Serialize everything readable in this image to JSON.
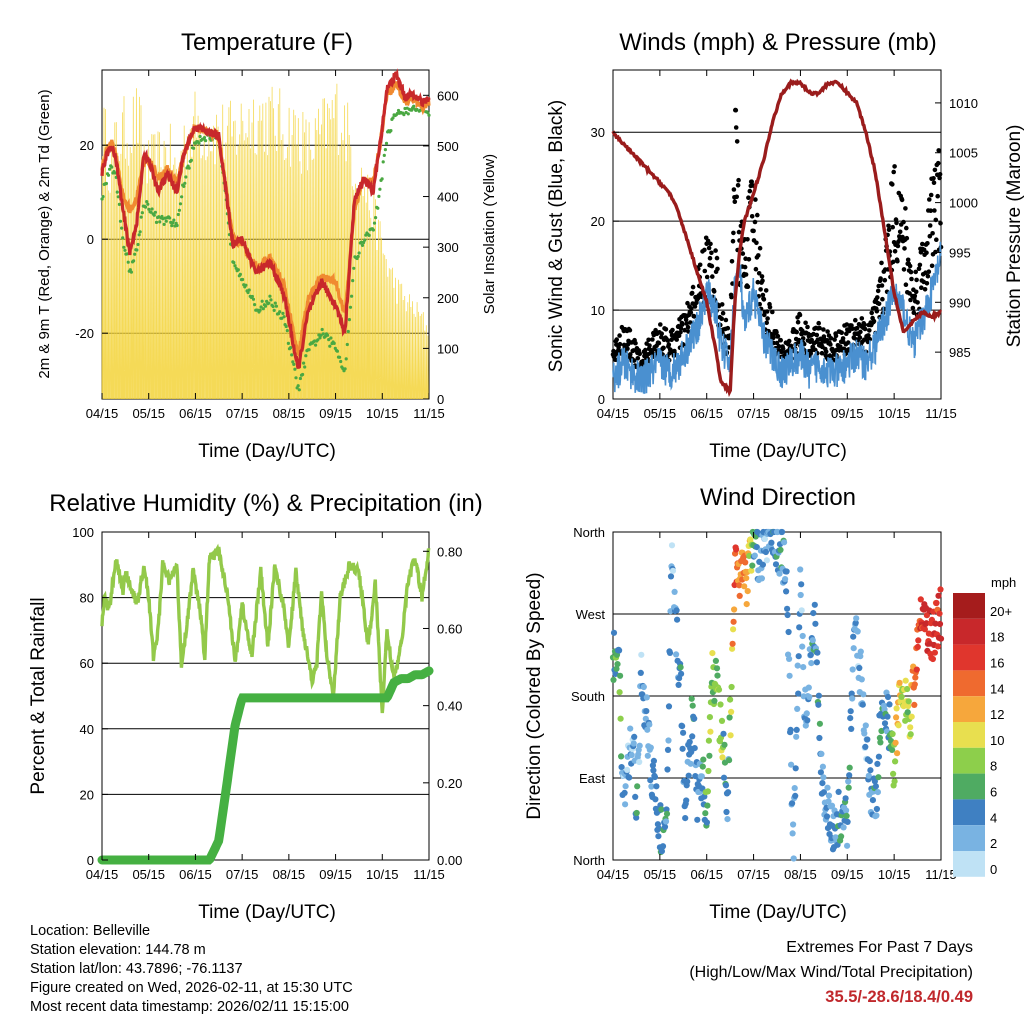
{
  "panels": {
    "temperature": {
      "title": "Temperature (F)",
      "ylabel_left": "2m & 9m T (Red, Orange) & 2m Td (Green)",
      "ylabel_right": "Solar Insolation (Yellow)",
      "xlabel": "Time (Day/UTC)"
    },
    "winds": {
      "title": "Winds (mph) & Pressure (mb)",
      "ylabel_left": "Sonic Wind & Gust (Blue, Black)",
      "ylabel_right": "Station Pressure (Maroon)",
      "xlabel": "Time (Day/UTC)"
    },
    "humidity": {
      "title": "Relative Humidity (%) & Precipitation (in)",
      "ylabel_left": "Percent & Total Rainfall",
      "xlabel": "Time (Day/UTC)"
    },
    "direction": {
      "title": "Wind Direction",
      "ylabel_left": "Direction (Colored By Speed)",
      "xlabel": "Time (Day/UTC)",
      "legend_title": "mph",
      "legend_labels": [
        "20+",
        "18",
        "16",
        "14",
        "12",
        "10",
        "8",
        "6",
        "4",
        "2",
        "0"
      ],
      "legend_colors": [
        "#a51c1c",
        "#c8282b",
        "#e0362d",
        "#ef6a2f",
        "#f6a73c",
        "#e8df4f",
        "#8dcf4b",
        "#4fab62",
        "#3f80c2",
        "#79b3e2",
        "#bfe2f5"
      ]
    }
  },
  "info": {
    "location": "Location: Belleville",
    "elevation": "Station elevation: 144.78 m",
    "latlon": "Station lat/lon: 43.7896; -76.1137",
    "created": "Figure created on Wed, 2026-02-11, at 15:30 UTC",
    "recent": "Most recent data timestamp: 2026/02/11 15:15:00",
    "extremes_title": "Extremes For Past 7 Days",
    "extremes_subtitle": "(High/Low/Max Wind/Total Precipitation)",
    "extremes_values": "35.5/-28.6/18.4/0.49"
  },
  "colors": {
    "temp_2m": "#c8282b",
    "temp_9m": "#f08a30",
    "dewpoint": "#4aa842",
    "solar": "#f3d33a",
    "wind": "#4a90d0",
    "gust": "#000000",
    "pressure": "#9a1c1c",
    "rh": "#93c94a",
    "precip": "#45b042",
    "extremes": "#c0282c"
  },
  "chart_data": [
    {
      "id": "temperature",
      "type": "line",
      "title": "Temperature (F)",
      "xlabel": "Time (Day/UTC)",
      "ylabel": "2m & 9m T (Red, Orange) & 2m Td (Green)",
      "ylabel_right": "Solar Insolation (Yellow)",
      "x_ticks": [
        "04/15",
        "05/15",
        "06/15",
        "07/15",
        "08/15",
        "09/15",
        "10/15",
        "11/15"
      ],
      "ylim": [
        -34,
        36
      ],
      "y_ticks": [
        -20,
        0,
        20
      ],
      "y_ticks_right": [
        0,
        100,
        200,
        300,
        400,
        500,
        600
      ],
      "ylim_right": [
        0,
        650
      ],
      "gridlines_y": [
        -20,
        0,
        20
      ],
      "x": [
        0,
        0.1,
        0.2,
        0.3,
        0.45,
        0.6,
        0.75,
        0.9,
        1.0,
        1.2,
        1.4,
        1.6,
        1.75,
        1.9,
        2.0,
        2.2,
        2.5,
        2.8,
        3.0,
        3.3,
        3.6,
        3.9,
        4.2,
        4.4,
        4.7,
        5.0,
        5.2,
        5.4,
        5.6,
        5.8,
        5.95,
        6.1,
        6.3,
        6.5,
        6.7,
        6.85,
        7.0
      ],
      "series": [
        {
          "name": "2m T (Red)",
          "values": [
            14,
            18,
            20,
            17,
            6,
            -3,
            4,
            18,
            17,
            10,
            14,
            10,
            18,
            22,
            24,
            23,
            22,
            -1,
            0,
            -7,
            -5,
            -12,
            -28,
            -16,
            -9,
            -14,
            -20,
            8,
            13,
            10,
            20,
            32,
            35,
            30,
            31,
            29,
            30
          ]
        },
        {
          "name": "9m T (Orange)",
          "values": [
            15,
            19,
            21,
            18,
            9,
            6,
            9,
            17,
            17,
            13,
            15,
            12,
            18,
            22,
            24,
            23,
            22,
            0,
            -1,
            -6,
            -4,
            -10,
            -25,
            -13,
            -8,
            -9,
            -16,
            6,
            13,
            12,
            20,
            31,
            33,
            29,
            30,
            28,
            29
          ]
        },
        {
          "name": "2m Td (Green)",
          "values": [
            9,
            13,
            16,
            13,
            0,
            -7,
            -2,
            8,
            7,
            4,
            4,
            3,
            12,
            17,
            21,
            22,
            21,
            -4,
            -8,
            -15,
            -13,
            -17,
            -32,
            -24,
            -20,
            -23,
            -28,
            -5,
            0,
            2,
            10,
            22,
            27,
            27,
            28,
            28,
            27
          ]
        },
        {
          "name": "Solar Insolation (Yellow)",
          "y_axis": "right",
          "cycle_days": 0.25,
          "peak_values": [
            620,
            560,
            520,
            580,
            600,
            610,
            630,
            550,
            520,
            540,
            560,
            500,
            580,
            600,
            620,
            610,
            600,
            590,
            620,
            640,
            630,
            610,
            600,
            560,
            600,
            650,
            620,
            520,
            480,
            420,
            360,
            300,
            250,
            220,
            200,
            180,
            150
          ]
        }
      ]
    },
    {
      "id": "winds",
      "type": "scatter",
      "title": "Winds (mph) & Pressure (mb)",
      "xlabel": "Time (Day/UTC)",
      "ylabel": "Sonic Wind & Gust (Blue, Black)",
      "ylabel_right": "Station Pressure (Maroon)",
      "x_ticks": [
        "04/15",
        "05/15",
        "06/15",
        "07/15",
        "08/15",
        "09/15",
        "10/15",
        "11/15"
      ],
      "ylim": [
        0,
        37
      ],
      "y_ticks": [
        0,
        10,
        20,
        30
      ],
      "y_ticks_right": [
        985,
        990,
        995,
        1000,
        1005,
        1010
      ],
      "ylim_right": [
        980.3,
        1013.3
      ],
      "gridlines_y": [
        10,
        20,
        30
      ],
      "x": [
        0,
        0.2,
        0.4,
        0.6,
        0.8,
        1.0,
        1.2,
        1.4,
        1.6,
        1.8,
        2.0,
        2.2,
        2.3,
        2.5,
        2.6,
        2.7,
        2.8,
        3.0,
        3.2,
        3.4,
        3.6,
        3.8,
        4.0,
        4.2,
        4.4,
        4.6,
        4.8,
        5.0,
        5.2,
        5.4,
        5.6,
        5.8,
        6.0,
        6.2,
        6.4,
        6.6,
        6.8,
        7.0
      ],
      "series": [
        {
          "name": "Sonic Wind (Blue)",
          "values": [
            2,
            4,
            3,
            2,
            3,
            4,
            3,
            4,
            6,
            8,
            12,
            10,
            6,
            4,
            13,
            15,
            8,
            12,
            7,
            5,
            3,
            4,
            5,
            3,
            4,
            3,
            3,
            4,
            5,
            4,
            6,
            9,
            12,
            10,
            6,
            9,
            12,
            16
          ]
        },
        {
          "name": "Gust (Black)",
          "values": [
            5,
            7,
            6,
            4,
            6,
            7,
            6,
            7,
            9,
            12,
            15,
            14,
            9,
            6,
            29,
            18,
            15,
            22,
            11,
            8,
            5,
            6,
            8,
            6,
            7,
            6,
            6,
            7,
            8,
            7,
            9,
            14,
            22,
            19,
            11,
            15,
            20,
            24
          ]
        },
        {
          "name": "Station Pressure (Maroon)",
          "y_axis": "right",
          "values": [
            1007,
            1006,
            1005,
            1004,
            1003,
            1002,
            1001,
            999,
            996,
            993,
            990,
            985,
            982,
            981,
            990,
            995,
            998,
            1001,
            1004,
            1008,
            1011,
            1012,
            1012,
            1011,
            1011,
            1012,
            1012,
            1011,
            1010,
            1007,
            1003,
            997,
            991,
            987,
            988,
            989,
            988.5,
            989
          ]
        }
      ]
    },
    {
      "id": "humidity",
      "type": "line",
      "title": "Relative Humidity (%) & Precipitation (in)",
      "xlabel": "Time (Day/UTC)",
      "ylabel": "Percent & Total Rainfall",
      "x_ticks": [
        "04/15",
        "05/15",
        "06/15",
        "07/15",
        "08/15",
        "09/15",
        "10/15",
        "11/15"
      ],
      "ylim": [
        0,
        100
      ],
      "y_ticks": [
        0,
        20,
        40,
        60,
        80,
        100
      ],
      "y_ticks_right": [
        "0.00",
        "0.20",
        "0.40",
        "0.60",
        "0.80"
      ],
      "ylim_right": [
        0,
        0.85
      ],
      "gridlines_y": [
        20,
        40,
        60,
        80
      ],
      "x": [
        0,
        0.05,
        0.15,
        0.3,
        0.45,
        0.5,
        0.6,
        0.75,
        0.9,
        1.0,
        1.1,
        1.2,
        1.3,
        1.45,
        1.6,
        1.7,
        1.8,
        1.95,
        2.1,
        2.2,
        2.3,
        2.5,
        2.7,
        2.85,
        3.0,
        3.2,
        3.4,
        3.55,
        3.7,
        3.9,
        4.0,
        4.15,
        4.3,
        4.5,
        4.6,
        4.7,
        4.8,
        4.95,
        5.1,
        5.3,
        5.5,
        5.7,
        5.85,
        6.0,
        6.1,
        6.25,
        6.4,
        6.55,
        6.7,
        6.85,
        7.0
      ],
      "series": [
        {
          "name": "Relative Humidity (%)",
          "values": [
            72,
            80,
            76,
            92,
            82,
            88,
            84,
            78,
            90,
            80,
            62,
            70,
            90,
            85,
            90,
            60,
            70,
            88,
            76,
            62,
            92,
            94,
            80,
            60,
            78,
            62,
            88,
            65,
            90,
            76,
            65,
            88,
            70,
            55,
            60,
            82,
            64,
            50,
            80,
            90,
            88,
            65,
            85,
            45,
            70,
            55,
            65,
            85,
            92,
            80,
            95
          ]
        },
        {
          "name": "Total Precipitation (in)",
          "y_axis": "right",
          "values": [
            0,
            0,
            0,
            0,
            0,
            0,
            0,
            0,
            0,
            0,
            0,
            0,
            0,
            0,
            0,
            0,
            0,
            0,
            0,
            0,
            0,
            0.05,
            0.22,
            0.35,
            0.42,
            0.42,
            0.42,
            0.42,
            0.42,
            0.42,
            0.42,
            0.42,
            0.42,
            0.42,
            0.42,
            0.42,
            0.42,
            0.42,
            0.42,
            0.42,
            0.42,
            0.42,
            0.42,
            0.42,
            0.42,
            0.46,
            0.47,
            0.47,
            0.48,
            0.48,
            0.49
          ]
        }
      ]
    },
    {
      "id": "direction",
      "type": "scatter",
      "title": "Wind Direction",
      "xlabel": "Time (Day/UTC)",
      "ylabel": "Direction (Colored By Speed)",
      "x_ticks": [
        "04/15",
        "05/15",
        "06/15",
        "07/15",
        "08/15",
        "09/15",
        "10/15",
        "11/15"
      ],
      "y_ticks": [
        "North",
        "East",
        "South",
        "West",
        "North"
      ],
      "ylim": [
        0,
        360
      ],
      "gridlines_y": [
        90,
        180,
        270
      ],
      "legend_title": "mph",
      "x": [
        0.05,
        0.15,
        0.2,
        0.35,
        0.45,
        0.5,
        0.6,
        0.75,
        0.85,
        0.95,
        1.05,
        1.15,
        1.25,
        1.35,
        1.45,
        1.55,
        1.6,
        1.7,
        1.8,
        1.9,
        2.0,
        2.1,
        2.2,
        2.3,
        2.45,
        2.6,
        2.7,
        2.85,
        3.0,
        3.15,
        3.3,
        3.5,
        3.7,
        3.85,
        4.0,
        4.1,
        4.3,
        4.5,
        4.7,
        4.85,
        5.0,
        5.15,
        5.3,
        5.45,
        5.6,
        5.75,
        5.9,
        6.0,
        6.1,
        6.2,
        6.3,
        6.4,
        6.5,
        6.6,
        6.7,
        6.8,
        6.9,
        7.0
      ],
      "directions": [
        220,
        210,
        60,
        110,
        150,
        40,
        200,
        140,
        90,
        50,
        30,
        40,
        330,
        250,
        180,
        60,
        100,
        160,
        70,
        90,
        60,
        200,
        190,
        150,
        60,
        330,
        320,
        300,
        350,
        330,
        360,
        345,
        320,
        10,
        300,
        160,
        260,
        60,
        40,
        50,
        40,
        250,
        200,
        90,
        60,
        180,
        150,
        100,
        170,
        190,
        150,
        180,
        230,
        280,
        250,
        240,
        260,
        270
      ],
      "speeds": [
        5,
        6,
        3,
        2,
        3,
        4,
        2,
        3,
        3,
        4,
        5,
        4,
        2,
        3,
        4,
        4,
        3,
        5,
        3,
        4,
        6,
        8,
        7,
        9,
        3,
        15,
        14,
        13,
        5,
        3,
        2,
        4,
        4,
        3,
        3,
        2,
        4,
        3,
        3,
        4,
        4,
        3,
        2,
        3,
        4,
        5,
        3,
        10,
        12,
        9,
        8,
        12,
        15,
        16,
        17,
        17,
        16,
        16
      ]
    }
  ]
}
